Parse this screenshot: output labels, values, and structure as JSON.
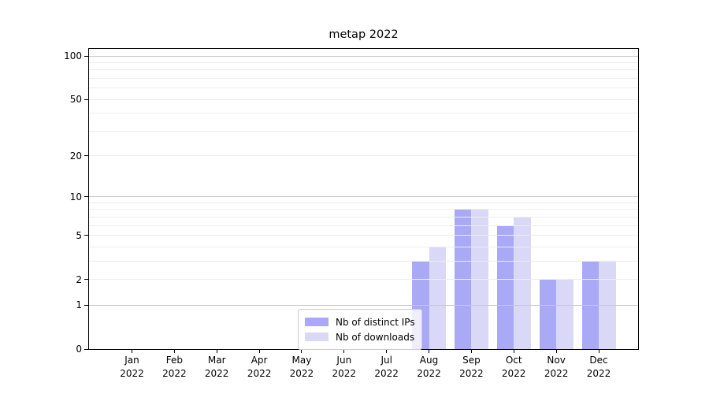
{
  "chart_data": {
    "type": "bar",
    "title": "metap 2022",
    "categories": [
      "Jan 2022",
      "Feb 2022",
      "Mar 2022",
      "Apr 2022",
      "May 2022",
      "Jun 2022",
      "Jul 2022",
      "Aug 2022",
      "Sep 2022",
      "Oct 2022",
      "Nov 2022",
      "Dec 2022"
    ],
    "series": [
      {
        "name": "Nb of distinct IPs",
        "color": "#a9a9f5",
        "values": [
          0,
          0,
          0,
          0,
          0,
          0,
          0,
          3,
          8,
          6,
          2,
          3
        ]
      },
      {
        "name": "Nb of downloads",
        "color": "#d9d9f7",
        "values": [
          0,
          0,
          0,
          0,
          0,
          0,
          0,
          4,
          8,
          7,
          2,
          3
        ]
      }
    ],
    "xlabel": "",
    "ylabel": "",
    "yscale": "log1p",
    "ylim": [
      0,
      112
    ],
    "yticks": [
      0,
      1,
      2,
      5,
      10,
      20,
      50,
      100
    ],
    "grid_major": [
      1,
      10,
      100
    ],
    "grid_minor": [
      2,
      3,
      4,
      5,
      6,
      7,
      8,
      9,
      20,
      30,
      40,
      50,
      60,
      70,
      80,
      90
    ],
    "grid": true,
    "legend_position": "lower center"
  },
  "colors": {
    "grid_major": "#c8c8c8",
    "grid_minor": "#ededed",
    "spine": "#000000",
    "legend_border": "#cccccc",
    "legend_background": "rgba(255,255,255,0.8)"
  }
}
